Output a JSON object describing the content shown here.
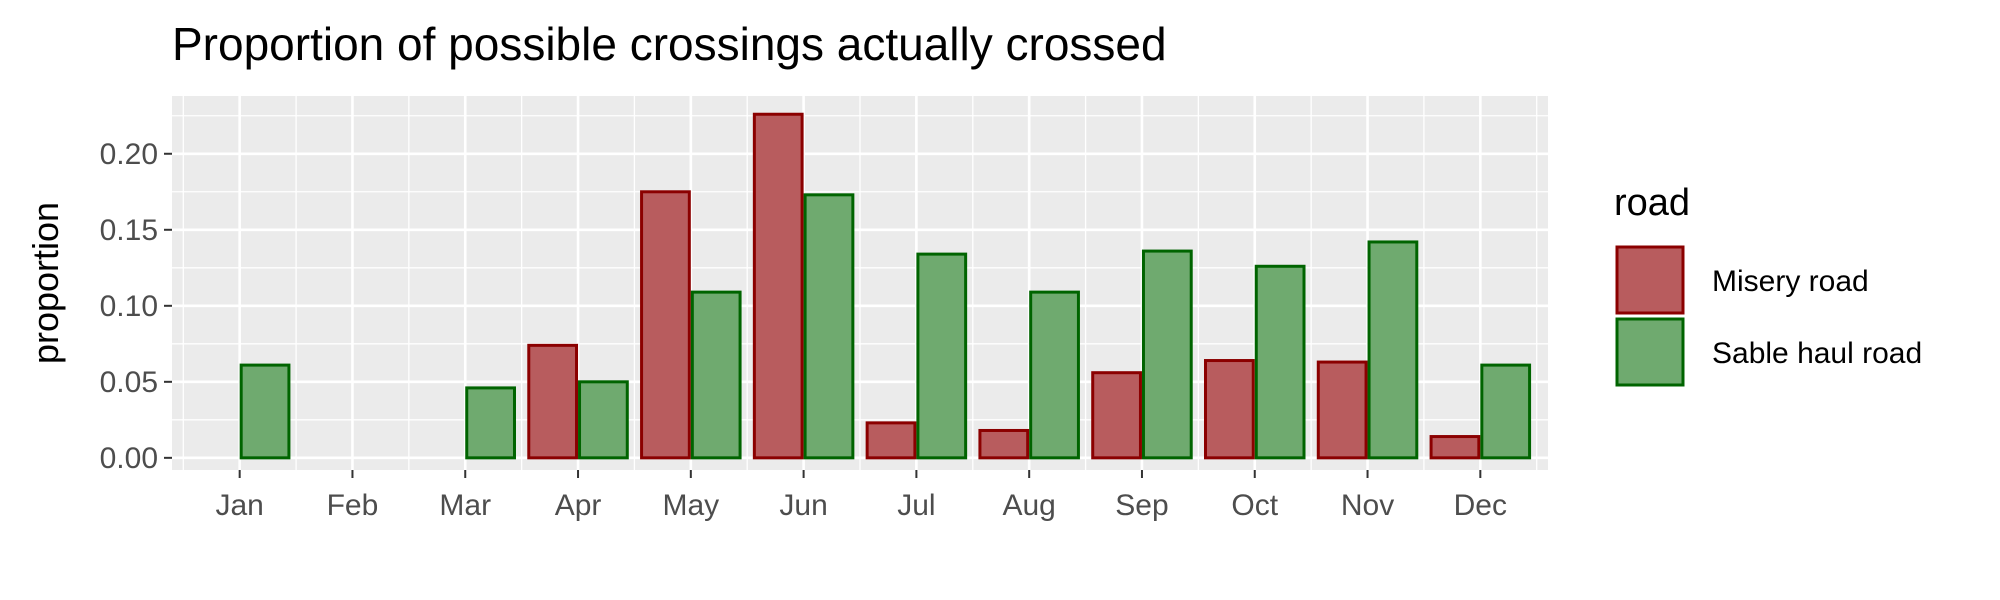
{
  "chart_data": {
    "type": "bar",
    "title": "Proportion of possible crossings actually crossed",
    "xlabel": "",
    "ylabel": "proportion",
    "categories": [
      "Jan",
      "Feb",
      "Mar",
      "Apr",
      "May",
      "Jun",
      "Jul",
      "Aug",
      "Sep",
      "Oct",
      "Nov",
      "Dec"
    ],
    "series": [
      {
        "name": "Misery road",
        "values": [
          0.0,
          0.0,
          0.0,
          0.074,
          0.175,
          0.226,
          0.023,
          0.018,
          0.056,
          0.064,
          0.063,
          0.014
        ],
        "fill": "#B85C5E",
        "stroke": "#8B0000"
      },
      {
        "name": "Sable haul road",
        "values": [
          0.061,
          0.0,
          0.046,
          0.05,
          0.109,
          0.173,
          0.134,
          0.109,
          0.136,
          0.126,
          0.142,
          0.061
        ],
        "fill": "#6FAA6F",
        "stroke": "#006400"
      }
    ],
    "yticks": [
      "0.00",
      "0.05",
      "0.10",
      "0.15",
      "0.20"
    ],
    "ylim": [
      -0.008,
      0.238
    ],
    "grid": true,
    "legend": {
      "title": "road",
      "position": "right"
    },
    "colors": {
      "panel_background": "#EBEBEB",
      "gridline": "#FFFFFF"
    }
  }
}
